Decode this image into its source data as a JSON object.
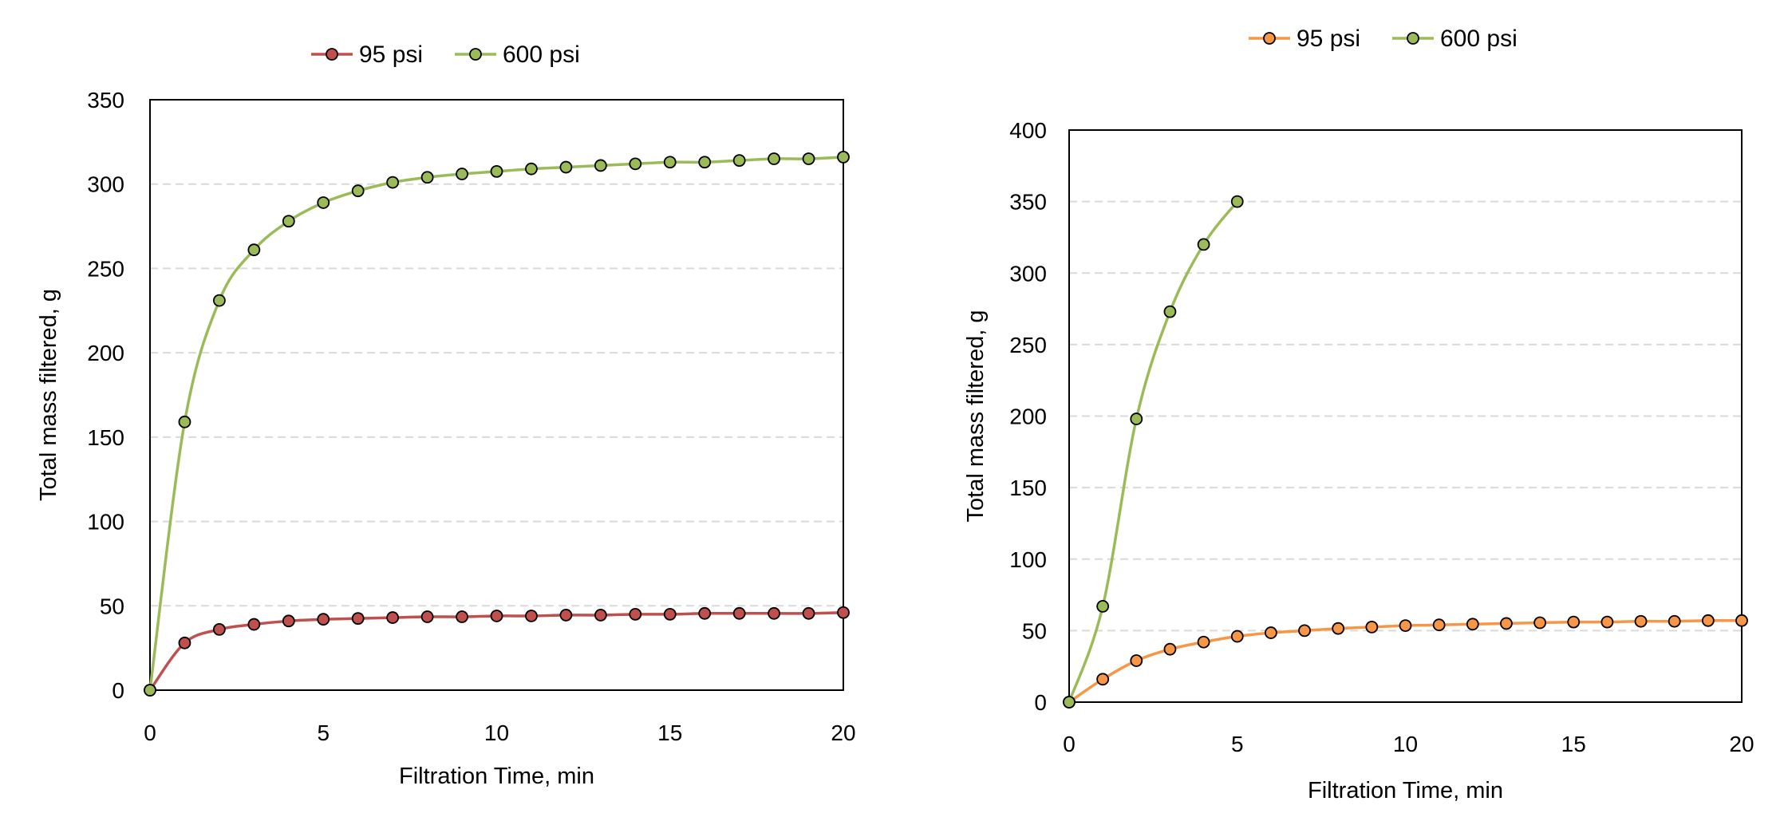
{
  "chart_data": [
    {
      "type": "line",
      "xlabel": "Filtration Time, min",
      "ylabel": "Total mass filtered, g",
      "xlim": [
        0,
        20
      ],
      "ylim": [
        0,
        350
      ],
      "xticks": [
        0,
        5,
        10,
        15,
        20
      ],
      "yticks": [
        0,
        50,
        100,
        150,
        200,
        250,
        300,
        350
      ],
      "grid": "horizontal dashed",
      "legend_position": "top",
      "series": [
        {
          "name": "95 psi",
          "color": "#C0504D",
          "x": [
            0,
            1,
            2,
            3,
            4,
            5,
            6,
            7,
            8,
            9,
            10,
            11,
            12,
            13,
            14,
            15,
            16,
            17,
            18,
            19,
            20
          ],
          "y": [
            0,
            28,
            36,
            39,
            41,
            42,
            42.5,
            43,
            43.5,
            43.5,
            44,
            44,
            44.5,
            44.5,
            45,
            45,
            45.5,
            45.5,
            45.5,
            45.5,
            46
          ]
        },
        {
          "name": "600 psi",
          "color": "#9BBB59",
          "x": [
            0,
            1,
            2,
            3,
            4,
            5,
            6,
            7,
            8,
            9,
            10,
            11,
            12,
            13,
            14,
            15,
            16,
            17,
            18,
            19,
            20
          ],
          "y": [
            0,
            159,
            231,
            261,
            278,
            289,
            296,
            301,
            304,
            306,
            307.5,
            309,
            310,
            311,
            312,
            313,
            313,
            314,
            315,
            315,
            316
          ]
        }
      ]
    },
    {
      "type": "line",
      "xlabel": "Filtration Time, min",
      "ylabel": "Total mass filtered, g",
      "xlim": [
        0,
        20
      ],
      "ylim": [
        0,
        400
      ],
      "xticks": [
        0,
        5,
        10,
        15,
        20
      ],
      "yticks": [
        0,
        50,
        100,
        150,
        200,
        250,
        300,
        350,
        400
      ],
      "grid": "horizontal dashed",
      "legend_position": "top",
      "series": [
        {
          "name": "95 psi",
          "color": "#F79646",
          "x": [
            0,
            1,
            2,
            3,
            4,
            5,
            6,
            7,
            8,
            9,
            10,
            11,
            12,
            13,
            14,
            15,
            16,
            17,
            18,
            19,
            20
          ],
          "y": [
            0,
            16,
            29,
            37,
            42,
            46,
            48.5,
            50,
            51.5,
            52.5,
            53.5,
            54,
            54.5,
            55,
            55.5,
            56,
            56,
            56.5,
            56.5,
            57,
            57
          ]
        },
        {
          "name": "600 psi",
          "color": "#9BBB59",
          "x": [
            0,
            1,
            2,
            3,
            4,
            5
          ],
          "y": [
            0,
            67,
            198,
            273,
            320,
            350
          ]
        }
      ]
    }
  ]
}
